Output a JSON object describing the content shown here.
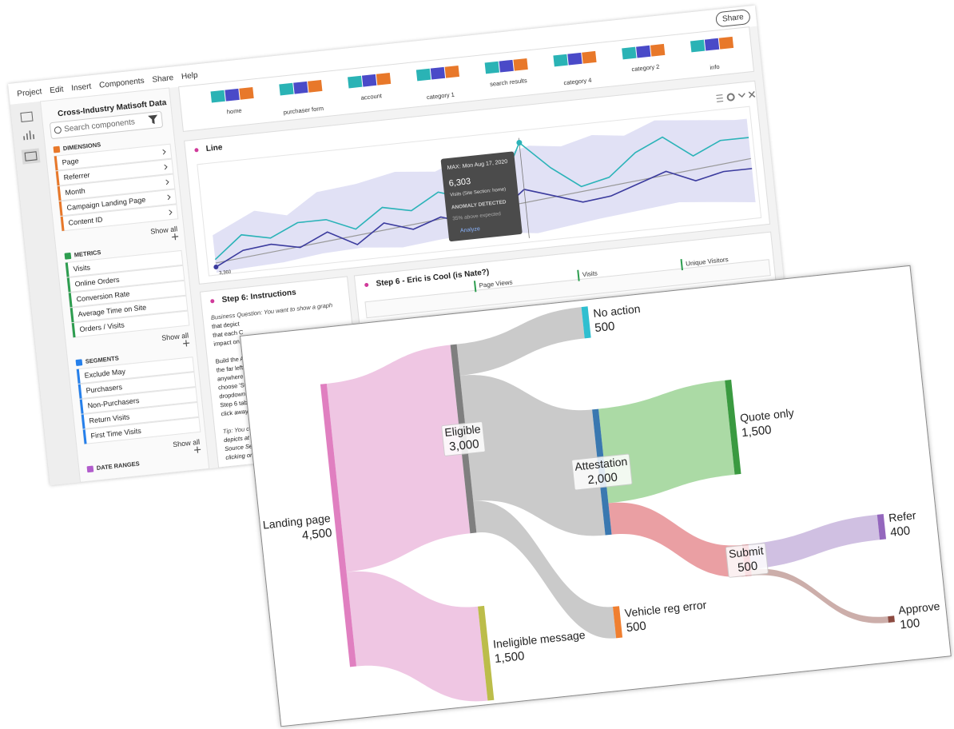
{
  "menu": [
    "Project",
    "Edit",
    "Insert",
    "Components",
    "Share",
    "Help"
  ],
  "share_button": "Share",
  "sidebar": {
    "report_suite": "Cross-Industry Matisoft Data",
    "search_placeholder": "Search components",
    "sections": [
      {
        "title": "DIMENSIONS",
        "color": "#e8782a",
        "items": [
          "Page",
          "Referrer",
          "Month",
          "Campaign Landing Page",
          "Content ID"
        ],
        "show_all": "Show all"
      },
      {
        "title": "METRICS",
        "color": "#2d9d4f",
        "items": [
          "Visits",
          "Online Orders",
          "Conversion Rate",
          "Average Time on Site",
          "Orders / Visits"
        ],
        "show_all": "Show all"
      },
      {
        "title": "SEGMENTS",
        "color": "#2680eb",
        "items": [
          "Exclude May",
          "Purchasers",
          "Non-Purchasers",
          "Return Visits",
          "First Time Visits"
        ],
        "show_all": "Show all"
      },
      {
        "title": "DATE RANGES",
        "color": "#b15ccc",
        "items": []
      }
    ]
  },
  "bar_panel": {
    "categories": [
      "home",
      "purchaser form",
      "account",
      "category 1",
      "search results",
      "category 4",
      "category 2",
      "info"
    ]
  },
  "line_panel": {
    "title": "Line",
    "series": [
      {
        "color": "#2bb3b8",
        "values": [
          3600,
          4300,
          4100,
          4500,
          4500,
          4100,
          4700,
          4500,
          5000,
          4700,
          4600,
          6303,
          5400,
          4700,
          4900,
          5600,
          6000,
          5300,
          5700,
          5700
        ]
      },
      {
        "color": "#3b3b9e",
        "values": [
          3360,
          3800,
          3900,
          3700,
          4100,
          3600,
          4200,
          3900,
          4200,
          3900,
          4100,
          4800,
          4500,
          4200,
          4300,
          4600,
          4900,
          4500,
          4700,
          4700
        ],
        "value_labels": [
          "3,360"
        ]
      }
    ],
    "tooltip": {
      "title": "MAX: Mon Aug 17, 2020",
      "value": "6,303",
      "metric": "Visits (Site Section: home)",
      "status": "ANOMALY DETECTED",
      "detail": "35% above expected",
      "action": "Analyze"
    }
  },
  "instructions_panel": {
    "title": "Step 6: Instructions",
    "lines": [
      "Business Question: You want to show a graph",
      "that depict",
      "that each C",
      "impact on",
      "",
      "Build the A",
      "the far left",
      "anywhere",
      "choose 'Ste",
      "dropdown.",
      "Step 6 tabl",
      "click away",
      "",
      "Tip: You ca",
      "depicts at",
      "Source Set",
      "clicking on"
    ]
  },
  "table_panel": {
    "title": "Step 6 - Eric is Cool (is Nate?)",
    "headers": [
      "Page Views",
      "Visits",
      "Unique Visitors"
    ]
  },
  "sankey": {
    "nodes": [
      {
        "label": "Landing page",
        "value": 4500,
        "value_label": "4,500",
        "color": "#e07fc0"
      },
      {
        "label": "Eligible",
        "value": 3000,
        "value_label": "3,000",
        "color": "#7f7f7f"
      },
      {
        "label": "Ineligible message",
        "value": 1500,
        "value_label": "1,500",
        "color": "#bcbd4a"
      },
      {
        "label": "No action",
        "value": 500,
        "value_label": "500",
        "color": "#2fbfd0"
      },
      {
        "label": "Attestation",
        "value": 2000,
        "value_label": "2,000",
        "color": "#3a78b0"
      },
      {
        "label": "Vehicle reg error",
        "value": 500,
        "value_label": "500",
        "color": "#f07f30"
      },
      {
        "label": "Quote only",
        "value": 1500,
        "value_label": "1,500",
        "color": "#3a9a40"
      },
      {
        "label": "Submit",
        "value": 500,
        "value_label": "500",
        "color": "#e03a4a"
      },
      {
        "label": "Refer",
        "value": 400,
        "value_label": "400",
        "color": "#9467bd"
      },
      {
        "label": "Approve",
        "value": 100,
        "value_label": "100",
        "color": "#8c4a40"
      }
    ],
    "links": [
      {
        "source": 0,
        "target": 1,
        "value": 3000,
        "color": "#eec3e2"
      },
      {
        "source": 0,
        "target": 2,
        "value": 1500,
        "color": "#eec3e2"
      },
      {
        "source": 1,
        "target": 3,
        "value": 500,
        "color": "#c7c7c7"
      },
      {
        "source": 1,
        "target": 4,
        "value": 2000,
        "color": "#c7c7c7"
      },
      {
        "source": 1,
        "target": 5,
        "value": 500,
        "color": "#c7c7c7"
      },
      {
        "source": 4,
        "target": 6,
        "value": 1500,
        "color": "#a6d8a0"
      },
      {
        "source": 4,
        "target": 7,
        "value": 500,
        "color": "#e99a9e"
      },
      {
        "source": 7,
        "target": 8,
        "value": 400,
        "color": "#cdbde0"
      },
      {
        "source": 7,
        "target": 9,
        "value": 100,
        "color": "#c9aaa5"
      }
    ]
  }
}
